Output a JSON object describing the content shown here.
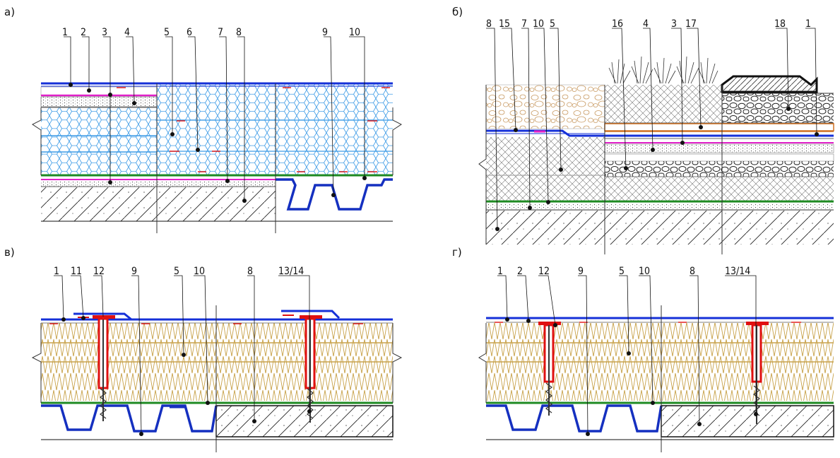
{
  "panels": [
    {
      "id": "a",
      "label": "а)",
      "callouts": [
        "1",
        "2",
        "3",
        "4",
        "5",
        "6",
        "7",
        "8",
        "9",
        "10"
      ]
    },
    {
      "id": "b",
      "label": "б)",
      "callouts": [
        "8",
        "15",
        "7",
        "10",
        "5",
        "16",
        "4",
        "3",
        "17",
        "18",
        "1"
      ]
    },
    {
      "id": "v",
      "label": "в)",
      "callouts": [
        "1",
        "11",
        "12",
        "9",
        "5",
        "10",
        "8",
        "13/14"
      ]
    },
    {
      "id": "g",
      "label": "г)",
      "callouts": [
        "1",
        "2",
        "12",
        "9",
        "5",
        "10",
        "8",
        "13/14"
      ]
    }
  ],
  "colors": {
    "membrane": "#1530d8",
    "vapor_barrier": "#1e8a22",
    "geotextile": "#e020c8",
    "fastener": "#e01010",
    "foam_cells": "#2a8ee0",
    "mineral_wool": "#c8a24a",
    "gravel": "#c89a62",
    "drainage_orange": "#d07020",
    "deck_steel": "#1530c0"
  },
  "icons": [
    "hex-xps-insulation",
    "mineral-wool-zigzag",
    "concrete-hatch",
    "profiled-steel-deck",
    "pebble-gravel",
    "grass-tufts",
    "telescopic-fastener"
  ]
}
